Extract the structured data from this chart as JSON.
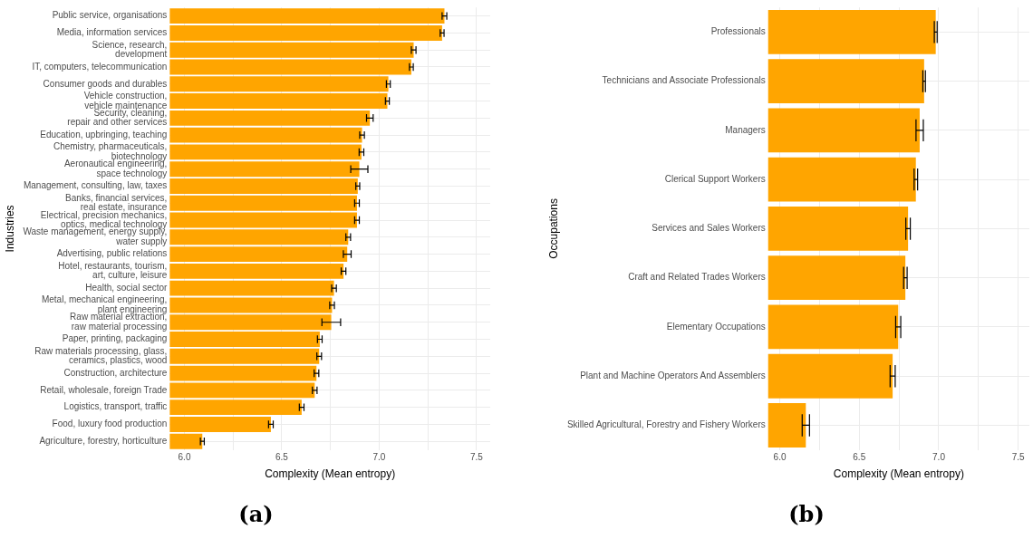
{
  "chart_data": [
    {
      "type": "bar",
      "orientation": "horizontal",
      "xlabel": "Complexity (Mean entropy)",
      "ylabel": "Industries",
      "annotations": [
        "(a)"
      ],
      "categories": [
        "Public service, organisations",
        "Media, information services",
        "Science, research,\ndevelopment",
        "IT, computers, telecommunication",
        "Consumer goods and durables",
        "Vehicle construction,\nvehicle maintenance",
        "Security, cleaning,\nrepair and other services",
        "Education, upbringing, teaching",
        "Chemistry, pharmaceuticals,\nbiotechnology",
        "Aeronautical engineering,\nspace technology",
        "Management, consulting, law, taxes",
        "Banks, financial services,\nreal estate, insurance",
        "Electrical, precision mechanics,\noptics, medical technology",
        "Waste management, energy supply,\nwater supply",
        "Advertising, public relations",
        "Hotel, restaurants, tourism,\nart, culture, leisure",
        "Health, social sector",
        "Metal, mechanical engineering,\nplant engineering",
        "Raw material extraction,\nraw material processing",
        "Paper, printing, packaging",
        "Raw materials processing, glass,\nceramics, plastics, wood",
        "Construction, architecture",
        "Retail, wholesale, foreign Trade",
        "Logistics, transport, traffic",
        "Food, luxury food production",
        "Agriculture, forestry, horticulture"
      ],
      "series": [
        {
          "color": "#ffa500",
          "values": [
            7.335,
            7.323,
            7.177,
            7.165,
            7.047,
            7.042,
            6.952,
            6.912,
            6.909,
            6.898,
            6.89,
            6.886,
            6.886,
            6.841,
            6.836,
            6.817,
            6.768,
            6.758,
            6.754,
            6.695,
            6.692,
            6.678,
            6.669,
            6.602,
            6.444,
            6.092
          ],
          "errors": [
            0.012,
            0.01,
            0.012,
            0.01,
            0.01,
            0.01,
            0.017,
            0.012,
            0.012,
            0.044,
            0.01,
            0.012,
            0.012,
            0.012,
            0.02,
            0.012,
            0.012,
            0.012,
            0.048,
            0.012,
            0.012,
            0.012,
            0.012,
            0.012,
            0.012,
            0.01
          ]
        }
      ],
      "xlim": [
        5.925,
        7.57
      ],
      "xticks": [
        {
          "value": 6,
          "label": "6.0"
        },
        {
          "value": 6.25,
          "label": null
        },
        {
          "value": 6.5,
          "label": "6.5"
        },
        {
          "value": 6.75,
          "label": null
        },
        {
          "value": 7,
          "label": "7.0"
        },
        {
          "value": 7.25,
          "label": null
        },
        {
          "value": 7.5,
          "label": "7.5"
        }
      ],
      "grid": true
    },
    {
      "type": "bar",
      "orientation": "horizontal",
      "xlabel": "Complexity (Mean entropy)",
      "ylabel": "Occupations",
      "annotations": [
        "(b)"
      ],
      "categories": [
        "Professionals",
        "Technicians and Associate Professionals",
        "Managers",
        "Clerical Support Workers",
        "Services and Sales Workers",
        "Craft and Related Trades Workers",
        "Elementary Occupations",
        "Plant and Machine Operators And Assemblers",
        "Skilled Agricultural, Forestry and Fishery Workers"
      ],
      "series": [
        {
          "color": "#ffa500",
          "values": [
            6.981,
            6.908,
            6.88,
            6.856,
            6.807,
            6.79,
            6.745,
            6.71,
            6.164
          ],
          "errors": [
            0.009,
            0.008,
            0.023,
            0.011,
            0.014,
            0.011,
            0.016,
            0.016,
            0.023
          ]
        }
      ],
      "xlim": [
        5.927,
        7.57
      ],
      "xticks": [
        {
          "value": 6,
          "label": "6.0"
        },
        {
          "value": 6.25,
          "label": null
        },
        {
          "value": 6.5,
          "label": "6.5"
        },
        {
          "value": 6.75,
          "label": null
        },
        {
          "value": 7,
          "label": "7.0"
        },
        {
          "value": 7.25,
          "label": null
        },
        {
          "value": 7.5,
          "label": "7.5"
        }
      ],
      "grid": true
    }
  ]
}
